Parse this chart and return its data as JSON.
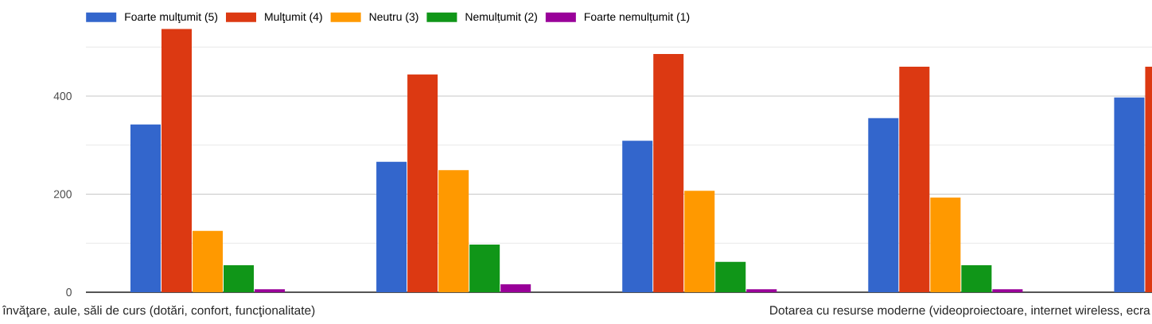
{
  "chart_data": {
    "type": "bar",
    "categories": [
      "învăţare, aule, săli de curs (dotări, confort, funcţionalitate)",
      null,
      null,
      "Dotarea cu resurse moderne (videoproiectoare, internet wireless, ecra",
      null
    ],
    "series": [
      {
        "name": "Foarte mulţumit (5)",
        "color": "#3366cc",
        "values": [
          342,
          266,
          309,
          355,
          397
        ]
      },
      {
        "name": "Mulţumit (4)",
        "color": "#dc3912",
        "values": [
          537,
          444,
          486,
          460,
          460
        ]
      },
      {
        "name": "Neutru (3)",
        "color": "#ff9900",
        "values": [
          125,
          249,
          207,
          193,
          null
        ]
      },
      {
        "name": "Nemulțumit (2)",
        "color": "#109618",
        "values": [
          55,
          97,
          62,
          55,
          null
        ]
      },
      {
        "name": "Foarte nemulțumit (1)",
        "color": "#990099",
        "values": [
          6,
          16,
          6,
          6,
          null
        ]
      }
    ],
    "ylim": [
      0,
      540
    ],
    "yticks": [
      0,
      {
        "value": 100,
        "label": null
      },
      200,
      {
        "value": 300,
        "label": null
      },
      400,
      {
        "value": 500,
        "label": null
      }
    ],
    "grid": "y",
    "legend": "top"
  }
}
